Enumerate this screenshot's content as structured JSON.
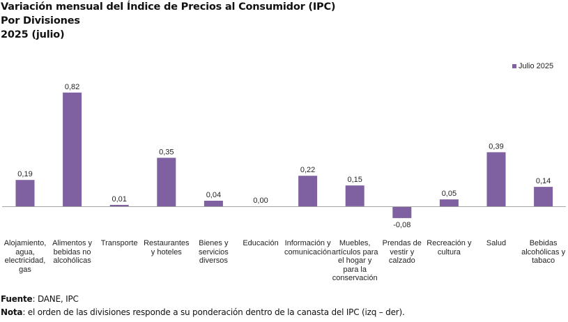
{
  "header": {
    "title_line1": "Variación mensual del Índice de Precios al Consumidor (IPC)",
    "title_line2": "Por Divisiones",
    "title_line3": "2025 (julio)"
  },
  "colors": {
    "bar": "#7f60a0",
    "axis": "#a6a6a6",
    "text": "#222222"
  },
  "chart_data": {
    "type": "bar",
    "title": "Variación mensual del Índice de Precios al Consumidor (IPC) Por Divisiones 2025 (julio)",
    "xlabel": "",
    "ylabel": "",
    "ylim": [
      -0.1,
      0.9
    ],
    "grid": false,
    "legend_position": "top-right",
    "categories": [
      "Alojamiento, agua, electricidad, gas",
      "Alimentos y bebidas no alcohólicas",
      "Transporte",
      "Restaurantes y hoteles",
      "Bienes y servicios diversos",
      "Educación",
      "Información y comunicación",
      "Muebles, artículos para el hogar y para la conservación",
      "Prendas de vestir y calzado",
      "Recreación y cultura",
      "Salud",
      "Bebidas alcohólicas y tabaco"
    ],
    "category_lines": [
      [
        "Alojamiento,",
        "agua,",
        "electricidad,",
        "gas"
      ],
      [
        "Alimentos y",
        "bebidas no",
        "alcohólicas"
      ],
      [
        "Transporte"
      ],
      [
        "Restaurantes",
        "y hoteles"
      ],
      [
        "Bienes y",
        "servicios",
        "diversos"
      ],
      [
        "Educación"
      ],
      [
        "Información y",
        "comunicación"
      ],
      [
        "Muebles,",
        "artículos para",
        "el hogar y",
        "para la",
        "conservación"
      ],
      [
        "Prendas de",
        "vestir y",
        "calzado"
      ],
      [
        "Recreación y",
        "cultura"
      ],
      [
        "Salud"
      ],
      [
        "Bebidas",
        "alcohólicas y",
        "tabaco"
      ]
    ],
    "series": [
      {
        "name": "Julio 2025",
        "values": [
          0.19,
          0.82,
          0.01,
          0.35,
          0.04,
          0.0,
          0.22,
          0.15,
          -0.08,
          0.05,
          0.39,
          0.14
        ],
        "labels": [
          "0,19",
          "0,82",
          "0,01",
          "0,35",
          "0,04",
          "0,00",
          "0,22",
          "0,15",
          "-0,08",
          "0,05",
          "0,39",
          "0,14"
        ]
      }
    ]
  },
  "footer": {
    "source_label": "Fuente",
    "source_text": ": DANE, IPC",
    "note_label": "Nota",
    "note_text": ": el orden de las divisiones responde a su ponderación dentro de la canasta del IPC (izq – der)."
  }
}
